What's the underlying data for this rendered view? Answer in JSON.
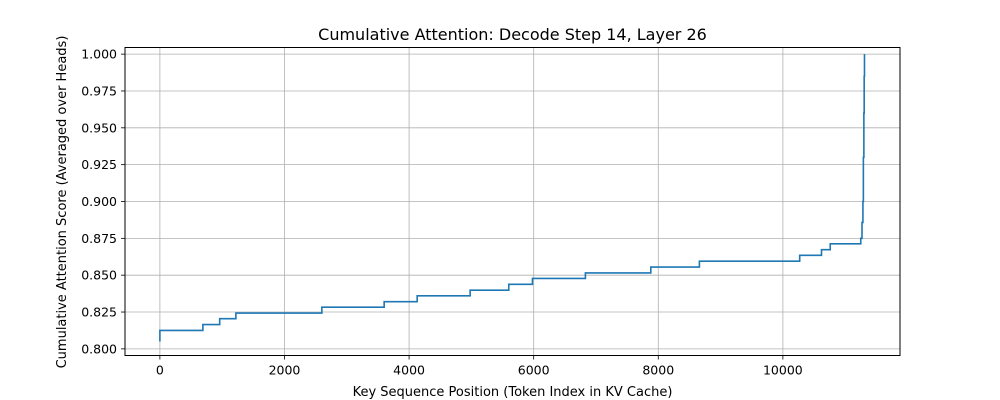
{
  "chart_data": {
    "type": "line",
    "title": "Cumulative Attention: Decode Step 14, Layer 26",
    "xlabel": "Key Sequence Position (Token Index in KV Cache)",
    "ylabel": "Cumulative Attention Score (Averaged over Heads)",
    "xlim": [
      -560,
      11880
    ],
    "ylim": [
      0.7955,
      1.0045
    ],
    "xticks": [
      0,
      2000,
      4000,
      6000,
      8000,
      10000
    ],
    "xtick_labels": [
      "0",
      "2000",
      "4000",
      "6000",
      "8000",
      "10000"
    ],
    "yticks": [
      0.8,
      0.825,
      0.85,
      0.875,
      0.9,
      0.925,
      0.95,
      0.975,
      1.0
    ],
    "ytick_labels": [
      "0.800",
      "0.825",
      "0.850",
      "0.875",
      "0.900",
      "0.925",
      "0.950",
      "0.975",
      "1.000"
    ],
    "grid": true,
    "line_color": "#1f77b4",
    "series": [
      {
        "name": "",
        "step": true,
        "x": [
          0,
          0,
          690,
          960,
          1220,
          2600,
          3600,
          4130,
          4980,
          5600,
          5980,
          6830,
          7880,
          8660,
          10270,
          10620,
          10760,
          11250,
          11270,
          11285,
          11292,
          11300,
          11305,
          11310
        ],
        "y": [
          0.805,
          0.8125,
          0.8165,
          0.8205,
          0.8243,
          0.8283,
          0.832,
          0.836,
          0.8398,
          0.8438,
          0.8478,
          0.8515,
          0.8555,
          0.8595,
          0.8635,
          0.8673,
          0.8713,
          0.875,
          0.8858,
          0.9,
          0.93,
          0.96,
          0.985,
          1.0
        ]
      }
    ]
  }
}
